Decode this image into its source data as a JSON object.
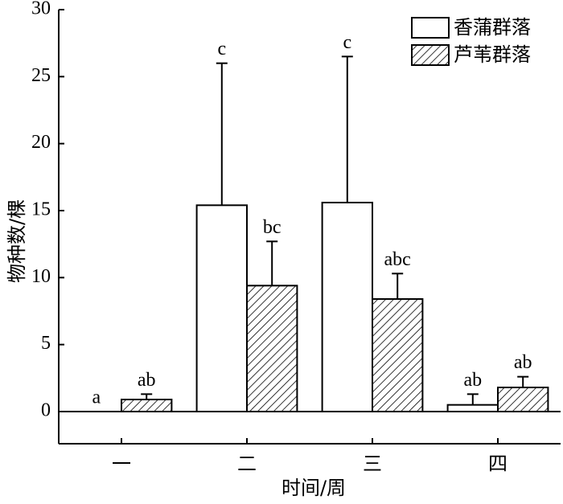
{
  "chart_data": {
    "type": "bar",
    "xlabel": "时间/周",
    "ylabel": "物种数/棵",
    "categories": [
      "一",
      "二",
      "三",
      "四"
    ],
    "series": [
      {
        "name": "香蒲群落",
        "color": "#ffffff",
        "hatch": false,
        "values": [
          0,
          15.4,
          15.6,
          0.5
        ],
        "errors": [
          0,
          10.6,
          10.9,
          0.8
        ],
        "letters": [
          "a",
          "c",
          "c",
          "ab"
        ]
      },
      {
        "name": "芦苇群落",
        "color": "#ffffff",
        "hatch": true,
        "values": [
          0.9,
          9.4,
          8.4,
          1.8
        ],
        "errors": [
          0.4,
          3.3,
          1.9,
          0.8
        ],
        "letters": [
          "ab",
          "bc",
          "abc",
          "ab"
        ]
      }
    ],
    "ylim": [
      -2.4,
      30
    ],
    "yticks": [
      0,
      5,
      10,
      15,
      20,
      25,
      30
    ],
    "legend": "upper right"
  }
}
